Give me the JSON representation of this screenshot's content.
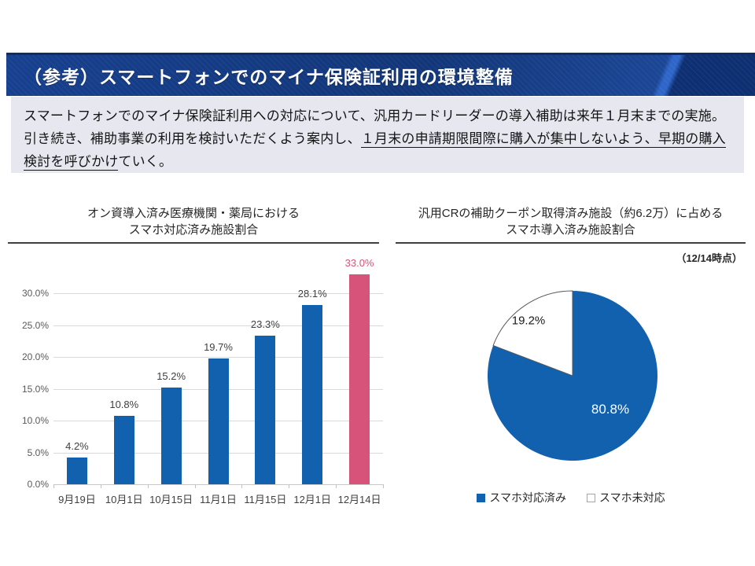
{
  "slide": {
    "header_title": "（参考）スマートフォンでのマイナ保険証利用の環境整備",
    "summary": {
      "line1": "スマートフォンでのマイナ保険証利用への対応について、汎用カードリーダーの導入補助は来年１月末までの実施。",
      "line2_normal": "引き続き、補助事業の利用を検討いただくよう案内し、",
      "line2_underline": "１月末の申請期限間際に購入が集中しないよう、早期の購入",
      "line3_underline": "検討を呼びかけ",
      "line3_normal": "ていく。"
    }
  },
  "chart_data": [
    {
      "type": "bar",
      "title_line1": "オン資導入済み医療機関・薬局における",
      "title_line2": "スマホ対応済み施設割合",
      "categories": [
        "9月19日",
        "10月1日",
        "10月15日",
        "11月1日",
        "11月15日",
        "12月1日",
        "12月14日"
      ],
      "values": [
        4.2,
        10.8,
        15.2,
        19.7,
        23.3,
        28.1,
        33.0
      ],
      "value_labels": [
        "4.2%",
        "10.8%",
        "15.2%",
        "19.7%",
        "23.3%",
        "28.1%",
        "33.0%"
      ],
      "ylim": [
        0,
        30
      ],
      "ytick_step": 5,
      "ytick_labels": [
        "0.0%",
        "5.0%",
        "10.0%",
        "15.0%",
        "20.0%",
        "25.0%",
        "30.0%"
      ],
      "grid": true,
      "legend_position": "none",
      "bar_color": "#1161ae",
      "highlight_color": "#d7537a",
      "highlight_index": 6
    },
    {
      "type": "pie",
      "title_line1": "汎用CRの補助クーポン取得済み施設（約6.2万）に占める",
      "title_line2": "スマホ導入済み施設割合",
      "as_of": "（12/14時点）",
      "slices": [
        {
          "label": "スマホ対応済み",
          "value": 80.8,
          "display": "80.8%",
          "color": "#1161ae"
        },
        {
          "label": "スマホ未対応",
          "value": 19.2,
          "display": "19.2%",
          "color": "#ffffff"
        }
      ],
      "legend": [
        "スマホ対応済み",
        "スマホ未対応"
      ],
      "legend_position": "bottom"
    }
  ],
  "colors": {
    "header_navy": "#123678",
    "header_navy_dark": "#0e2f72",
    "header_accent": "#2f66c8",
    "summary_bg": "#e7e7f0",
    "bar_blue": "#1161ae",
    "bar_highlight_pink": "#d7537a",
    "gridline": "#d9d9d9",
    "axis_text": "#595959",
    "pie_outline": "#595959"
  }
}
